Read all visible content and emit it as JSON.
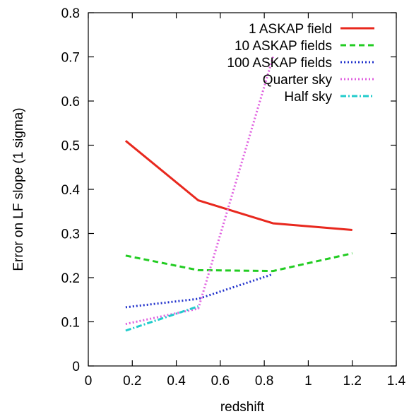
{
  "chart_data": {
    "type": "line",
    "title": "",
    "xlabel": "redshift",
    "ylabel": "Error on LF slope (1 sigma)",
    "xlim": [
      0,
      1.4
    ],
    "ylim": [
      0,
      0.8
    ],
    "xticks": [
      "0",
      "0.2",
      "0.4",
      "0.6",
      "0.8",
      "1",
      "1.2",
      "1.4"
    ],
    "yticks": [
      "0",
      "0.1",
      "0.2",
      "0.3",
      "0.4",
      "0.5",
      "0.6",
      "0.7",
      "0.8"
    ],
    "grid": false,
    "legend_position": "top-right",
    "series": [
      {
        "name": "1 ASKAP field",
        "color": "#e8281e",
        "dash": "solid",
        "x": [
          0.17,
          0.5,
          0.84,
          1.2
        ],
        "y": [
          0.51,
          0.375,
          0.323,
          0.308
        ]
      },
      {
        "name": "10 ASKAP fields",
        "color": "#22cc22",
        "dash": "dashed",
        "x": [
          0.17,
          0.5,
          0.84,
          1.2
        ],
        "y": [
          0.25,
          0.217,
          0.215,
          0.255
        ]
      },
      {
        "name": "100 ASKAP fields",
        "color": "#2233cc",
        "dash": "dotted",
        "x": [
          0.17,
          0.5,
          0.84
        ],
        "y": [
          0.133,
          0.152,
          0.208
        ]
      },
      {
        "name": "Quarter sky",
        "color": "#e060e0",
        "dash": "dotted",
        "x": [
          0.17,
          0.5,
          0.84
        ],
        "y": [
          0.095,
          0.13,
          0.7
        ]
      },
      {
        "name": "Half sky",
        "color": "#22cccc",
        "dash": "dashdot",
        "x": [
          0.17,
          0.5
        ],
        "y": [
          0.08,
          0.135
        ]
      }
    ]
  }
}
